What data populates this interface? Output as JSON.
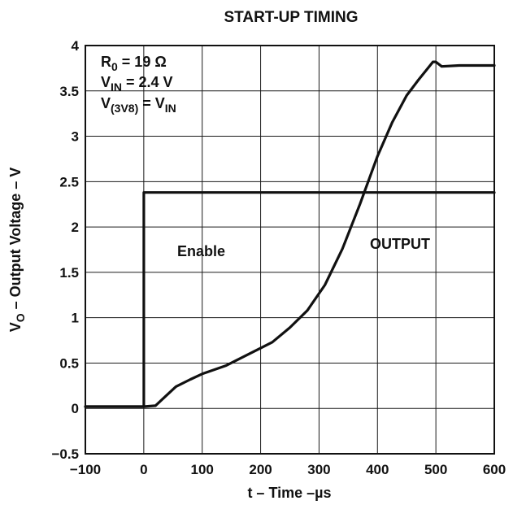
{
  "chart_data": {
    "type": "line",
    "title": "START-UP TIMING",
    "xlabel": {
      "main": "t – Time –",
      "unit": "µs"
    },
    "ylabel": {
      "main": "V",
      "sub": "O",
      "rest": " – Output Voltage – V"
    },
    "xlim": [
      -100,
      600
    ],
    "ylim": [
      -0.5,
      4
    ],
    "xticks": [
      -100,
      0,
      100,
      200,
      300,
      400,
      500,
      600
    ],
    "xtick_labels": [
      "−100",
      "0",
      "100",
      "200",
      "300",
      "400",
      "500",
      "600"
    ],
    "yticks": [
      -0.5,
      0,
      0.5,
      1,
      1.5,
      2,
      2.5,
      3,
      3.5,
      4
    ],
    "ytick_labels": [
      "−0.5",
      "0",
      "0.5",
      "1",
      "1.5",
      "2",
      "2.5",
      "3",
      "3.5",
      "4"
    ],
    "grid": true,
    "annotations": [
      {
        "main": "R",
        "sub": "0",
        "rest": " = 19 Ω"
      },
      {
        "main": "V",
        "sub": "IN",
        "rest": " = 2.4 V"
      },
      {
        "main": "V",
        "sub": "(3V8)",
        "rest": " = V",
        "sub2": "IN"
      }
    ],
    "series": [
      {
        "name": "Enable",
        "x": [
          -100,
          0,
          0,
          600
        ],
        "y": [
          0.02,
          0.02,
          2.38,
          2.38
        ]
      },
      {
        "name": "OUTPUT",
        "x": [
          -100,
          0,
          20,
          35,
          55,
          80,
          100,
          140,
          180,
          220,
          250,
          280,
          310,
          340,
          370,
          400,
          425,
          450,
          470,
          490,
          495,
          500,
          510,
          540,
          560,
          600
        ],
        "y": [
          0.02,
          0.02,
          0.03,
          0.12,
          0.24,
          0.32,
          0.38,
          0.47,
          0.6,
          0.73,
          0.89,
          1.08,
          1.36,
          1.76,
          2.25,
          2.78,
          3.15,
          3.45,
          3.62,
          3.78,
          3.82,
          3.82,
          3.77,
          3.78,
          3.78,
          3.78
        ]
      }
    ]
  }
}
